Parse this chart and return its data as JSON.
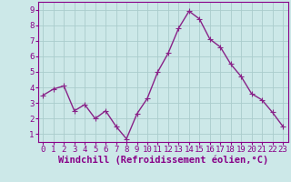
{
  "x": [
    0,
    1,
    2,
    3,
    4,
    5,
    6,
    7,
    8,
    9,
    10,
    11,
    12,
    13,
    14,
    15,
    16,
    17,
    18,
    19,
    20,
    21,
    22,
    23
  ],
  "y": [
    3.5,
    3.9,
    4.1,
    2.5,
    2.9,
    2.0,
    2.5,
    1.5,
    0.7,
    2.3,
    3.3,
    5.0,
    6.2,
    7.8,
    8.9,
    8.4,
    7.1,
    6.6,
    5.5,
    4.7,
    3.6,
    3.2,
    2.4,
    1.5
  ],
  "line_color": "#882288",
  "marker_color": "#882288",
  "bg_color": "#cce8e8",
  "grid_color": "#aacccc",
  "xlabel": "Windchill (Refroidissement éolien,°C)",
  "ylabel": "",
  "title": "",
  "xlim": [
    -0.5,
    23.5
  ],
  "ylim": [
    0.5,
    9.5
  ],
  "yticks": [
    1,
    2,
    3,
    4,
    5,
    6,
    7,
    8,
    9
  ],
  "xticks": [
    0,
    1,
    2,
    3,
    4,
    5,
    6,
    7,
    8,
    9,
    10,
    11,
    12,
    13,
    14,
    15,
    16,
    17,
    18,
    19,
    20,
    21,
    22,
    23
  ],
  "font_color": "#880088",
  "axis_color": "#880088",
  "tick_fontsize": 6.5,
  "xlabel_fontsize": 7.5,
  "linewidth": 1.0,
  "markersize": 2.5
}
